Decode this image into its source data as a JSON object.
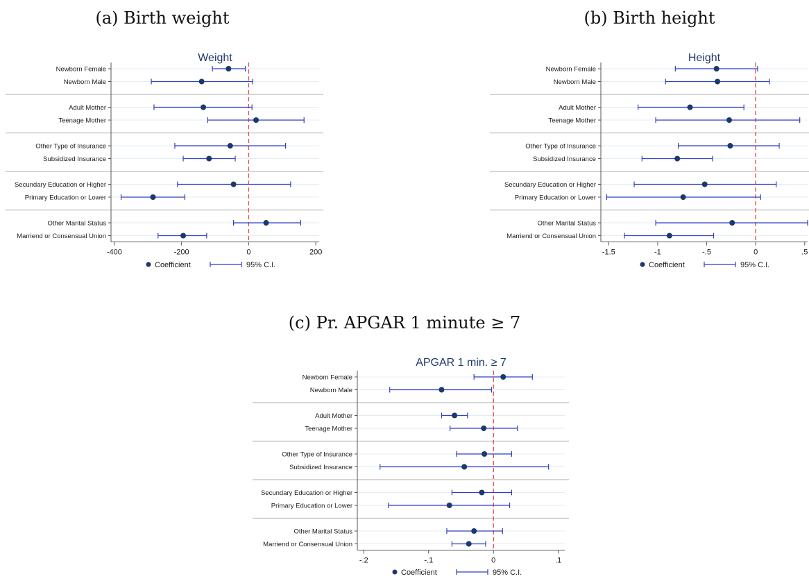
{
  "colors": {
    "marker": "#1b3a6b",
    "ci_line": "#2f3fc4",
    "zero_line": "#e05050",
    "separator": "#bdbdbd",
    "grid": "#e4ecf3",
    "axis": "#555555"
  },
  "panels": [
    {
      "caption": "(a) Birth weight"
    },
    {
      "caption": "(b) Birth height"
    },
    {
      "caption": "(c) Pr. APGAR 1 minute ≥ 7"
    }
  ],
  "chart_data": [
    {
      "type": "scatter",
      "title": "Weight",
      "categories": [
        "Newborn Female",
        "Newborn Male",
        "Adult Mother",
        "Teenage Mother",
        "Other Type of Insurance",
        "Subsidized Insurance",
        "Secundary Education or Higher",
        "Primary Education or Lower",
        "Other Marital Status",
        "Marriend or Consensual Union"
      ],
      "series": [
        {
          "name": "Coefficient",
          "values": [
            -60,
            -140,
            -135,
            22,
            -55,
            -118,
            -45,
            -285,
            52,
            -195
          ]
        },
        {
          "name": "95% C.I.",
          "lower": [
            -108,
            -290,
            -282,
            -122,
            -220,
            -195,
            -212,
            -380,
            -45,
            -270
          ],
          "upper": [
            -10,
            12,
            10,
            165,
            110,
            -40,
            125,
            -190,
            155,
            -125
          ]
        }
      ],
      "xlim": [
        -410,
        210
      ],
      "xticks": [
        -400,
        -200,
        0,
        200
      ],
      "xtick_labels": [
        "-400",
        "-200",
        "0",
        "200"
      ],
      "reference_line": 0,
      "group_breaks_after": [
        1,
        3,
        5,
        7
      ],
      "legend": {
        "marker_label": "Coefficient",
        "line_label": "95% C.I.",
        "position": "bottom-center"
      }
    },
    {
      "type": "scatter",
      "title": "Height",
      "categories": [
        "Newborn Female",
        "Newborn Male",
        "Adult Mother",
        "Teenage Mother",
        "Other Type of Insurance",
        "Subsidized Insurance",
        "Secundary Education or Higher",
        "Primary Education or Lower",
        "Other Marital Status",
        "Marriend or Consensual Union"
      ],
      "series": [
        {
          "name": "Coefficient",
          "values": [
            -0.4,
            -0.39,
            -0.67,
            -0.27,
            -0.26,
            -0.8,
            -0.52,
            -0.74,
            -0.24,
            -0.88
          ]
        },
        {
          "name": "95% C.I.",
          "lower": [
            -0.82,
            -0.92,
            -1.2,
            -1.02,
            -0.79,
            -1.16,
            -1.24,
            -1.52,
            -1.02,
            -1.34
          ],
          "upper": [
            0.02,
            0.14,
            -0.12,
            0.45,
            0.24,
            -0.44,
            0.21,
            0.05,
            0.53,
            -0.43
          ]
        }
      ],
      "xlim": [
        -1.58,
        0.53
      ],
      "xticks": [
        -1.5,
        -1,
        -0.5,
        0,
        0.5
      ],
      "xtick_labels": [
        "-1.5",
        "-1",
        "-.5",
        "0",
        ".5"
      ],
      "reference_line": 0,
      "group_breaks_after": [
        1,
        3,
        5,
        7
      ],
      "legend": {
        "marker_label": "Coefficient",
        "line_label": "95% C.I.",
        "position": "bottom-center"
      }
    },
    {
      "type": "scatter",
      "title": "APGAR 1 min. ≥ 7",
      "categories": [
        "Newborn Female",
        "Newborn Male",
        "Adult Mother",
        "Teenage Mother",
        "Other Type of Insurance",
        "Subsidized Insurance",
        "Secundary Education or Higher",
        "Primary Education or Lower",
        "Other Marital Status",
        "Marriend or Consensual Union"
      ],
      "series": [
        {
          "name": "Coefficient",
          "values": [
            0.015,
            -0.08,
            -0.06,
            -0.015,
            -0.014,
            -0.045,
            -0.018,
            -0.068,
            -0.03,
            -0.038
          ]
        },
        {
          "name": "95% C.I.",
          "lower": [
            -0.03,
            -0.16,
            -0.08,
            -0.067,
            -0.057,
            -0.175,
            -0.064,
            -0.162,
            -0.072,
            -0.064
          ],
          "upper": [
            0.06,
            -0.003,
            -0.04,
            0.037,
            0.028,
            0.085,
            0.028,
            0.025,
            0.014,
            -0.012
          ]
        }
      ],
      "xlim": [
        -0.21,
        0.11
      ],
      "xticks": [
        -0.2,
        -0.1,
        0,
        0.1
      ],
      "xtick_labels": [
        "-.2",
        "-.1",
        "0",
        ".1"
      ],
      "reference_line": 0,
      "group_breaks_after": [
        1,
        3,
        5,
        7
      ],
      "legend": {
        "marker_label": "Coefficient",
        "line_label": "95% C.I.",
        "position": "bottom-center"
      }
    }
  ]
}
